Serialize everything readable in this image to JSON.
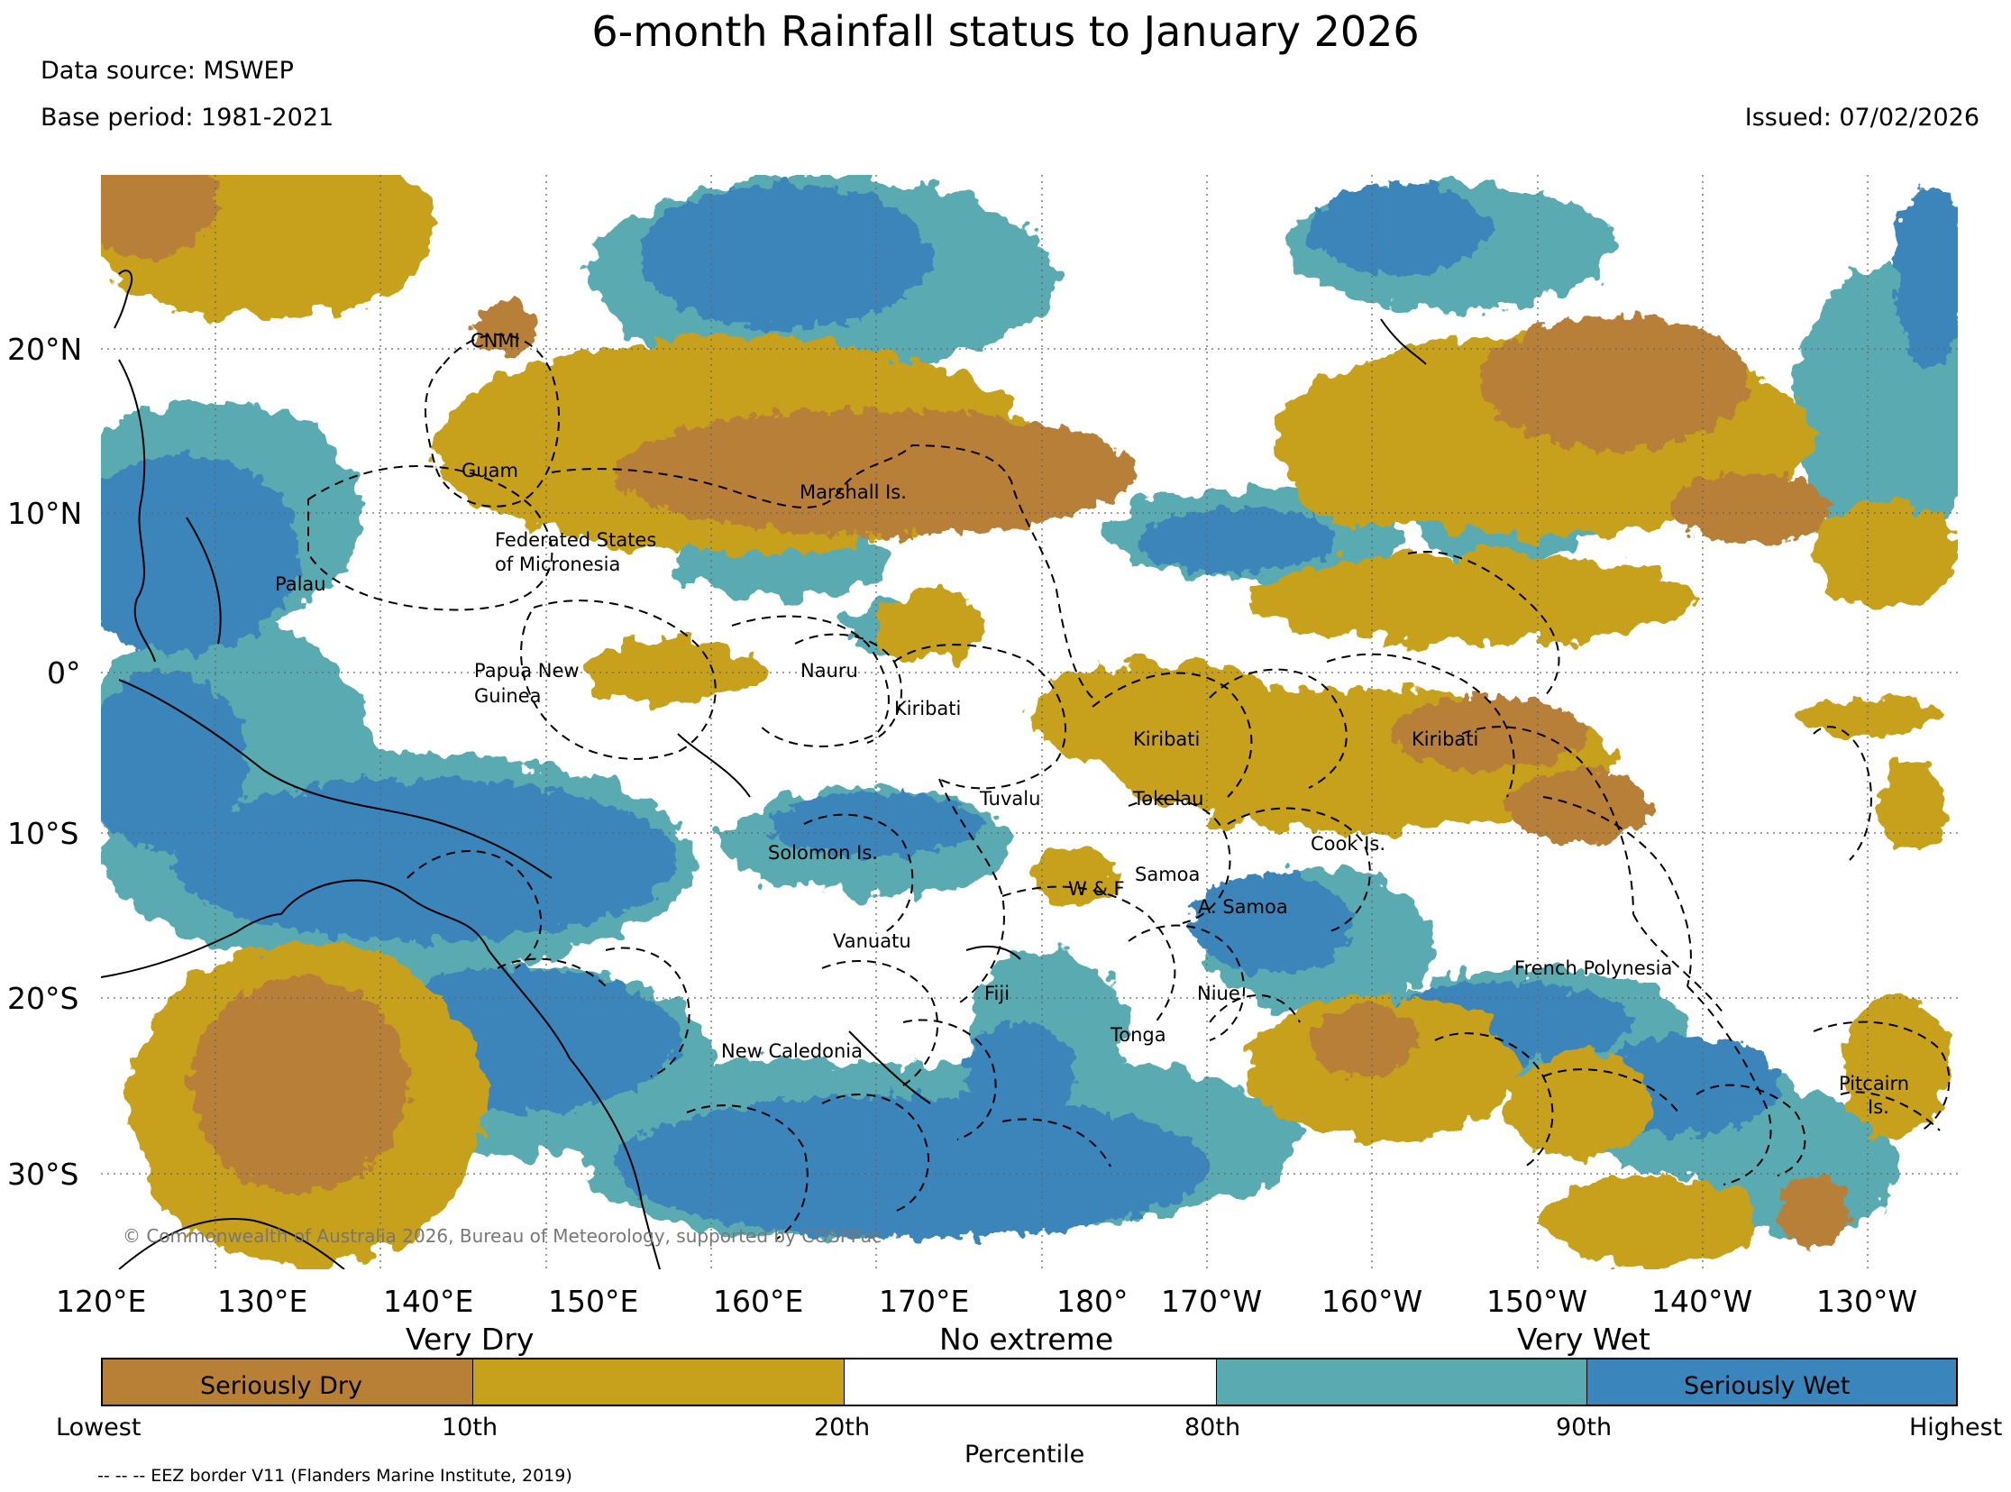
{
  "header": {
    "title": "6-month Rainfall status to January 2026",
    "data_source": "Data source: MSWEP",
    "base_period": "Base period: 1981-2021",
    "issued": "Issued: 07/02/2026"
  },
  "map": {
    "lat_labels": [
      "20°N",
      "10°N",
      "0°",
      "10°S",
      "20°S",
      "30°S"
    ],
    "lon_labels": [
      "120°E",
      "130°E",
      "140°E",
      "150°E",
      "160°E",
      "170°E",
      "180°",
      "170°W",
      "160°W",
      "150°W",
      "140°W",
      "130°W"
    ],
    "places": [
      "CNMI",
      "Guam",
      "Marshall Is.",
      "Federated States",
      "of Micronesia",
      "Palau",
      "Papua New",
      "Guinea",
      "Nauru",
      "Kiribati",
      "Kiribati",
      "Kiribati",
      "Tuvalu",
      "Tokelau",
      "Cook Is.",
      "Solomon Is.",
      "Samoa",
      "W & F",
      "A. Samoa",
      "Vanuatu",
      "French Polynesia",
      "Fiji",
      "Niue",
      "Tonga",
      "New Caledonia",
      "Pitcairn",
      "Is."
    ],
    "copyright": "© Commonwealth of Australia 2026, Bureau of Meteorology, supported by COSPPac",
    "colors": {
      "seriously_dry": "#b87f37",
      "very_dry": "#c7a11c",
      "very_wet": "#5aabb1",
      "seriously_wet": "#3a85bb",
      "eez_border": "#000000"
    }
  },
  "legend": {
    "very_dry": "Very Dry",
    "no_extreme": "No extreme",
    "very_wet": "Very Wet",
    "seriously_dry": "Seriously Dry",
    "seriously_wet": "Seriously Wet",
    "ticks": [
      "Lowest",
      "10th",
      "20th",
      "80th",
      "90th",
      "Highest"
    ],
    "axis_label": "Percentile"
  },
  "footer": {
    "eez_note": "-- -- -- EEZ border V11 (Flanders Marine Institute, 2019)"
  }
}
